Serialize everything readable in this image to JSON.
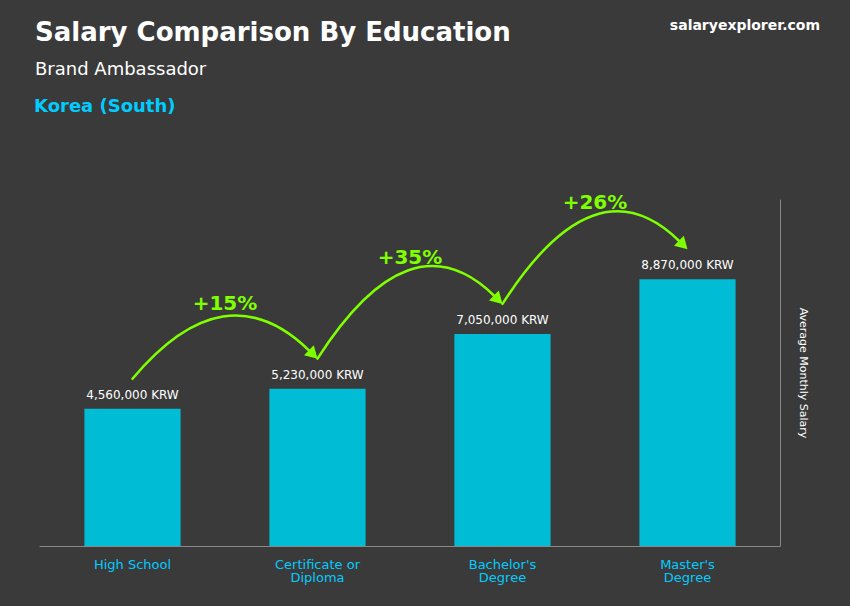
{
  "chart_data": {
    "type": "bar",
    "title": "Salary Comparison By Education",
    "subtitle": "Brand Ambassador",
    "annotations": [
      "Korea (South)",
      "salaryexplorer.com"
    ],
    "categories": [
      "High School",
      "Certificate or\nDiploma",
      "Bachelor's\nDegree",
      "Master's\nDegree"
    ],
    "values": [
      4560000,
      5230000,
      7050000,
      8870000
    ],
    "value_labels": [
      "4,560,000 KRW",
      "5,230,000 KRW",
      "7,050,000 KRW",
      "8,870,000 KRW"
    ],
    "change_labels": [
      "+15%",
      "+35%",
      "+26%"
    ],
    "color": "#00bcd4",
    "ylabel": "Average Monthly Salary",
    "ylim": [
      0,
      11500000
    ],
    "grid": false,
    "data_labels": true,
    "tick_labels": "x"
  }
}
